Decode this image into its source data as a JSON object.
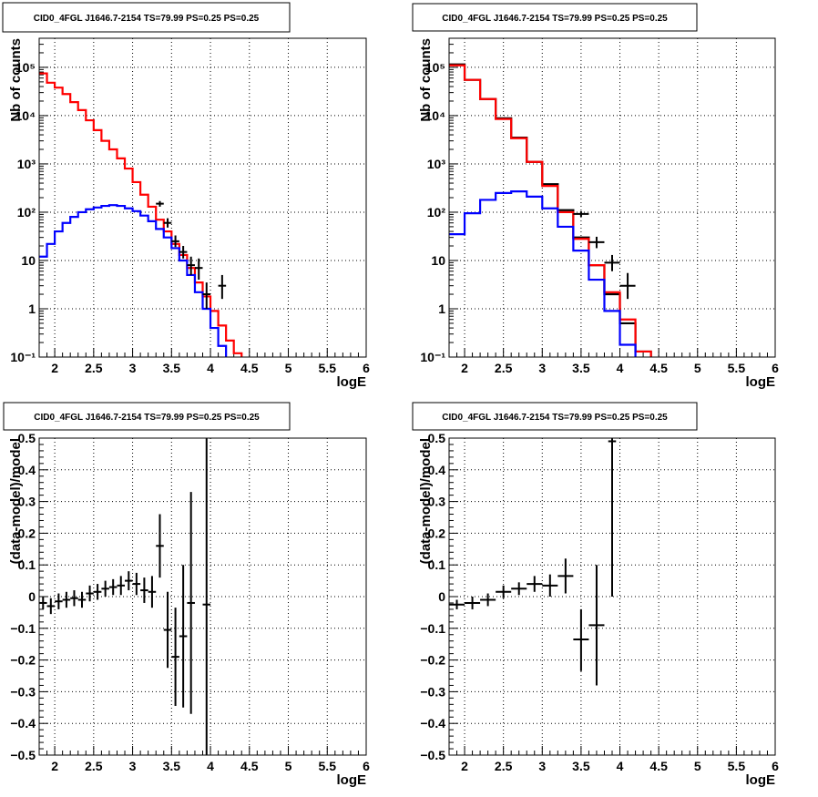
{
  "chart_data": [
    {
      "type": "histogram",
      "title": "CID0_4FGL J1646.7-2154 TS=79.99 PS=0.25 PS=0.25",
      "xlabel": "logE",
      "ylabel": "Nb of counts",
      "xlim": [
        1.8,
        6.0
      ],
      "ylim": [
        0.1,
        400000
      ],
      "yscale": "log",
      "grid": true,
      "xticks": [
        "2",
        "2.5",
        "3",
        "3.5",
        "4",
        "4.5",
        "5",
        "5.5",
        "6"
      ],
      "yticks": [
        "10^-1",
        "1",
        "10",
        "10^2",
        "10^3",
        "10^4",
        "10^5"
      ],
      "bin_edges": [
        1.8,
        1.9,
        2.0,
        2.1,
        2.2,
        2.3,
        2.4,
        2.5,
        2.6,
        2.7,
        2.8,
        2.9,
        3.0,
        3.1,
        3.2,
        3.3,
        3.4,
        3.5,
        3.6,
        3.7,
        3.8,
        3.9,
        4.0,
        4.1,
        4.2,
        4.3,
        4.4,
        4.5,
        4.6,
        4.7,
        4.8,
        4.9,
        5.0,
        5.1,
        5.2,
        5.3,
        5.4,
        5.5,
        5.6,
        5.7,
        5.8,
        5.9,
        6.0
      ],
      "series": [
        {
          "color": "#ff0000",
          "values": [
            75000,
            48000,
            38000,
            28000,
            19000,
            13000,
            8000,
            5000,
            3000,
            2000,
            1300,
            800,
            420,
            230,
            130,
            70,
            40,
            22,
            13,
            7,
            3.5,
            1.8,
            0.9,
            0.45,
            0.22,
            0.12,
            0.09,
            0.09,
            0.09,
            0.09,
            0.09,
            0.09,
            0.09,
            0.09,
            0.09,
            0.09,
            0.09,
            0.09,
            0.09,
            0.09,
            0.09,
            0.09
          ]
        },
        {
          "color": "#0000ff",
          "values": [
            12,
            22,
            40,
            60,
            80,
            100,
            115,
            125,
            135,
            140,
            135,
            120,
            105,
            85,
            65,
            45,
            30,
            18,
            10,
            5,
            2.2,
            1.0,
            0.4,
            0.17,
            0.09,
            0.09,
            0.09,
            0.09,
            0.09,
            0.09,
            0.09,
            0.09,
            0.09,
            0.09,
            0.09,
            0.09,
            0.09,
            0.09,
            0.09,
            0.09,
            0.09,
            0.09
          ]
        }
      ],
      "points": [
        {
          "x": 3.35,
          "xerr": 0.05,
          "y": 150,
          "ylo": 130,
          "yhi": 170
        },
        {
          "x": 3.45,
          "xerr": 0.05,
          "y": 60,
          "ylo": 48,
          "yhi": 75
        },
        {
          "x": 3.55,
          "xerr": 0.05,
          "y": 25,
          "ylo": 19,
          "yhi": 33
        },
        {
          "x": 3.65,
          "xerr": 0.05,
          "y": 15,
          "ylo": 11,
          "yhi": 20
        },
        {
          "x": 3.75,
          "xerr": 0.05,
          "y": 8,
          "ylo": 5,
          "yhi": 12
        },
        {
          "x": 3.85,
          "xerr": 0.05,
          "y": 7,
          "ylo": 4,
          "yhi": 11
        },
        {
          "x": 3.95,
          "xerr": 0.05,
          "y": 2,
          "ylo": 1,
          "yhi": 3.5
        },
        {
          "x": 4.15,
          "xerr": 0.05,
          "y": 3,
          "ylo": 1.6,
          "yhi": 5
        }
      ]
    },
    {
      "type": "histogram",
      "title": "CID0_4FGL J1646.7-2154 TS=79.99 PS=0.25 PS=0.25",
      "xlabel": "logE",
      "ylabel": "Nb of counts",
      "xlim": [
        1.8,
        6.0
      ],
      "ylim": [
        0.1,
        400000
      ],
      "yscale": "log",
      "grid": true,
      "xticks": [
        "2",
        "2.5",
        "3",
        "3.5",
        "4",
        "4.5",
        "5",
        "5.5",
        "6"
      ],
      "yticks": [
        "10^-1",
        "1",
        "10",
        "10^2",
        "10^3",
        "10^4",
        "10^5"
      ],
      "bin_edges": [
        1.8,
        2.0,
        2.2,
        2.4,
        2.6,
        2.8,
        3.0,
        3.2,
        3.4,
        3.6,
        3.8,
        4.0,
        4.2,
        4.4,
        4.6,
        4.8,
        5.0,
        5.2,
        5.4,
        5.6,
        5.8,
        6.0
      ],
      "series": [
        {
          "color": "#000000",
          "values": [
            115000,
            55000,
            22000,
            8800,
            3500,
            1100,
            380,
            110,
            30,
            8,
            2,
            0.5,
            0.13,
            0.09,
            0.09,
            0.09,
            0.09,
            0.09,
            0.09,
            0.09,
            0.09
          ]
        },
        {
          "color": "#ff0000",
          "values": [
            110000,
            55000,
            22000,
            8500,
            3400,
            1100,
            350,
            100,
            28,
            8,
            2.2,
            0.6,
            0.13,
            0.09,
            0.09,
            0.09,
            0.09,
            0.09,
            0.09,
            0.09,
            0.09
          ]
        },
        {
          "color": "#0000ff",
          "values": [
            35,
            95,
            180,
            250,
            270,
            210,
            120,
            50,
            16,
            4,
            0.9,
            0.18,
            0.09,
            0.09,
            0.09,
            0.09,
            0.09,
            0.09,
            0.09,
            0.09,
            0.09
          ]
        }
      ],
      "points": [
        {
          "x": 3.5,
          "xerr": 0.1,
          "y": 92,
          "ylo": 80,
          "yhi": 105
        },
        {
          "x": 3.7,
          "xerr": 0.1,
          "y": 24,
          "ylo": 18,
          "yhi": 31
        },
        {
          "x": 3.9,
          "xerr": 0.1,
          "y": 9,
          "ylo": 6,
          "yhi": 13
        },
        {
          "x": 4.1,
          "xerr": 0.1,
          "y": 3,
          "ylo": 1.6,
          "yhi": 5.5
        }
      ]
    },
    {
      "type": "scatter",
      "title": "CID0_4FGL J1646.7-2154 TS=79.99 PS=0.25 PS=0.25",
      "xlabel": "logE",
      "ylabel": "(data-model)/model",
      "xlim": [
        1.8,
        6.0
      ],
      "ylim": [
        -0.5,
        0.5
      ],
      "grid": true,
      "xticks": [
        "2",
        "2.5",
        "3",
        "3.5",
        "4",
        "4.5",
        "5",
        "5.5",
        "6"
      ],
      "yticks": [
        "−0.5",
        "−0.4",
        "−0.3",
        "−0.2",
        "−0.1",
        "0",
        "0.1",
        "0.2",
        "0.3",
        "0.4",
        "0.5"
      ],
      "points": [
        {
          "x": 1.85,
          "xerr": 0.05,
          "y": -0.02,
          "ylo": -0.04,
          "yhi": 0.0
        },
        {
          "x": 1.95,
          "xerr": 0.05,
          "y": -0.03,
          "ylo": -0.055,
          "yhi": -0.005
        },
        {
          "x": 2.05,
          "xerr": 0.05,
          "y": -0.015,
          "ylo": -0.04,
          "yhi": 0.01
        },
        {
          "x": 2.15,
          "xerr": 0.05,
          "y": -0.01,
          "ylo": -0.035,
          "yhi": 0.015
        },
        {
          "x": 2.25,
          "xerr": 0.05,
          "y": -0.005,
          "ylo": -0.03,
          "yhi": 0.02
        },
        {
          "x": 2.35,
          "xerr": 0.05,
          "y": -0.01,
          "ylo": -0.035,
          "yhi": 0.015
        },
        {
          "x": 2.45,
          "xerr": 0.05,
          "y": 0.01,
          "ylo": -0.015,
          "yhi": 0.035
        },
        {
          "x": 2.55,
          "xerr": 0.05,
          "y": 0.015,
          "ylo": -0.01,
          "yhi": 0.04
        },
        {
          "x": 2.65,
          "xerr": 0.05,
          "y": 0.025,
          "ylo": 0.0,
          "yhi": 0.05
        },
        {
          "x": 2.75,
          "xerr": 0.05,
          "y": 0.03,
          "ylo": 0.005,
          "yhi": 0.055
        },
        {
          "x": 2.85,
          "xerr": 0.05,
          "y": 0.035,
          "ylo": 0.005,
          "yhi": 0.065
        },
        {
          "x": 2.95,
          "xerr": 0.05,
          "y": 0.05,
          "ylo": 0.02,
          "yhi": 0.08
        },
        {
          "x": 3.05,
          "xerr": 0.05,
          "y": 0.04,
          "ylo": 0.005,
          "yhi": 0.075
        },
        {
          "x": 3.15,
          "xerr": 0.05,
          "y": 0.02,
          "ylo": -0.02,
          "yhi": 0.06
        },
        {
          "x": 3.25,
          "xerr": 0.05,
          "y": 0.015,
          "ylo": -0.035,
          "yhi": 0.065
        },
        {
          "x": 3.35,
          "xerr": 0.05,
          "y": 0.16,
          "ylo": 0.06,
          "yhi": 0.26
        },
        {
          "x": 3.45,
          "xerr": 0.05,
          "y": -0.105,
          "ylo": -0.225,
          "yhi": 0.015
        },
        {
          "x": 3.55,
          "xerr": 0.05,
          "y": -0.19,
          "ylo": -0.345,
          "yhi": -0.035
        },
        {
          "x": 3.65,
          "xerr": 0.05,
          "y": -0.125,
          "ylo": -0.35,
          "yhi": 0.1
        },
        {
          "x": 3.75,
          "xerr": 0.05,
          "y": -0.02,
          "ylo": -0.37,
          "yhi": 0.33
        },
        {
          "x": 3.95,
          "xerr": 0.05,
          "y": -0.025,
          "ylo": -0.5,
          "yhi": 0.5
        }
      ]
    },
    {
      "type": "scatter",
      "title": "CID0_4FGL J1646.7-2154 TS=79.99 PS=0.25 PS=0.25",
      "xlabel": "logE",
      "ylabel": "(data-model)/model",
      "xlim": [
        1.8,
        6.0
      ],
      "ylim": [
        -0.5,
        0.5
      ],
      "grid": true,
      "xticks": [
        "2",
        "2.5",
        "3",
        "3.5",
        "4",
        "4.5",
        "5",
        "5.5",
        "6"
      ],
      "yticks": [
        "−0.5",
        "−0.4",
        "−0.3",
        "−0.2",
        "−0.1",
        "0",
        "0.1",
        "0.2",
        "0.3",
        "0.4",
        "0.5"
      ],
      "points": [
        {
          "x": 1.9,
          "xerr": 0.1,
          "y": -0.025,
          "ylo": -0.04,
          "yhi": -0.01
        },
        {
          "x": 2.1,
          "xerr": 0.1,
          "y": -0.02,
          "ylo": -0.04,
          "yhi": 0.0
        },
        {
          "x": 2.3,
          "xerr": 0.1,
          "y": -0.01,
          "ylo": -0.03,
          "yhi": 0.01
        },
        {
          "x": 2.5,
          "xerr": 0.1,
          "y": 0.015,
          "ylo": -0.005,
          "yhi": 0.035
        },
        {
          "x": 2.7,
          "xerr": 0.1,
          "y": 0.025,
          "ylo": 0.005,
          "yhi": 0.045
        },
        {
          "x": 2.9,
          "xerr": 0.1,
          "y": 0.04,
          "ylo": 0.015,
          "yhi": 0.065
        },
        {
          "x": 3.1,
          "xerr": 0.1,
          "y": 0.035,
          "ylo": 0.0,
          "yhi": 0.07
        },
        {
          "x": 3.3,
          "xerr": 0.1,
          "y": 0.065,
          "ylo": 0.01,
          "yhi": 0.12
        },
        {
          "x": 3.5,
          "xerr": 0.1,
          "y": -0.135,
          "ylo": -0.235,
          "yhi": -0.04
        },
        {
          "x": 3.7,
          "xerr": 0.1,
          "y": -0.09,
          "ylo": -0.28,
          "yhi": 0.1
        },
        {
          "x": 3.9,
          "xerr": 0.05,
          "y": 0.49,
          "ylo": 0.0,
          "yhi": 0.5
        }
      ]
    }
  ]
}
